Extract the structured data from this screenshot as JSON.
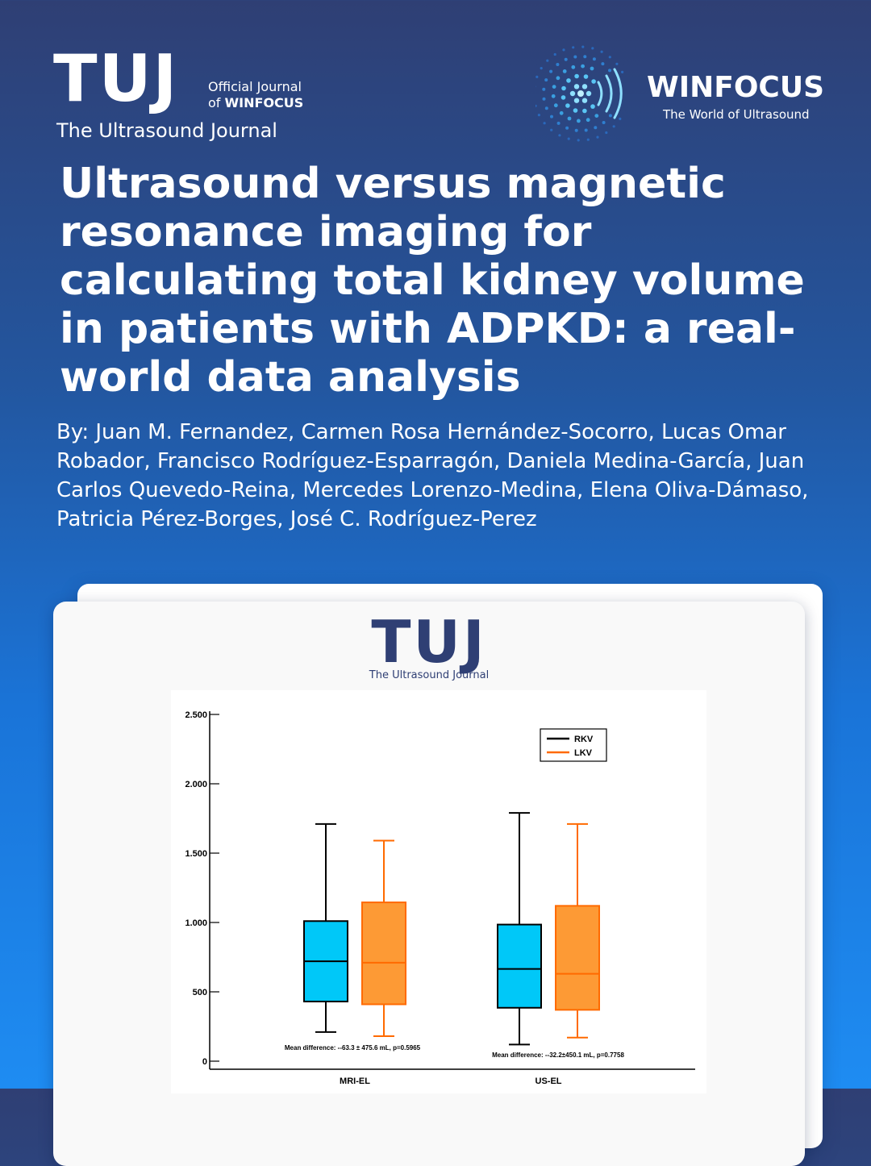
{
  "header": {
    "logo_text": "TUJ",
    "official_line1": "Official Journal",
    "official_line2_prefix": "of",
    "official_line2_bold": "WINFOCUS",
    "journal_name": "The Ultrasound Journal",
    "partner_name": "WINFOCUS",
    "partner_tagline": "The World of Ultrasound"
  },
  "article": {
    "title": "Ultrasound versus magnetic resonance imaging for calculating total kidney volume in patients with ADPKD: a real-world data analysis",
    "authors": "By: Juan M. Fernandez, Carmen Rosa Hernández-Socorro, Lucas Omar Robador, Francisco Rodríguez-Esparragón, Daniela Medina-García, Juan Carlos Quevedo-Reina, Mercedes Lorenzo-Medina, Elena Oliva-Dámaso, Patricia Pérez-Borges, José C. Rodríguez-Perez"
  },
  "card": {
    "logo_text": "TUJ",
    "subtitle": "The Ultrasound Journal"
  },
  "colors": {
    "rkv_fill": "#00c8f8",
    "lkv_fill": "#fd9a35",
    "lkv_line": "#ff6a00",
    "navy": "#2f3f74"
  },
  "chart_data": {
    "type": "box",
    "categories": [
      "MRI-EL",
      "US-EL"
    ],
    "ylim": [
      0,
      2500
    ],
    "yticks": [
      0,
      500,
      1000,
      1500,
      2000,
      2500
    ],
    "ytick_labels": [
      "0",
      "500",
      "1.000",
      "1.500",
      "2.000",
      "2.500"
    ],
    "legend": {
      "position": "top-right",
      "entries": [
        "RKV",
        "LKV"
      ]
    },
    "series": [
      {
        "name": "RKV",
        "color": "#000000",
        "fill": "#00c8f8",
        "boxes": [
          {
            "category": "MRI-EL",
            "min": 210,
            "q1": 430,
            "median": 720,
            "q3": 1010,
            "max": 1710
          },
          {
            "category": "US-EL",
            "min": 120,
            "q1": 385,
            "median": 665,
            "q3": 985,
            "max": 1790
          }
        ]
      },
      {
        "name": "LKV",
        "color": "#ff6a00",
        "fill": "#fd9a35",
        "boxes": [
          {
            "category": "MRI-EL",
            "min": 180,
            "q1": 410,
            "median": 710,
            "q3": 1145,
            "max": 1590
          },
          {
            "category": "US-EL",
            "min": 170,
            "q1": 370,
            "median": 630,
            "q3": 1120,
            "max": 1710
          }
        ]
      }
    ],
    "annotations": [
      {
        "category": "MRI-EL",
        "text": "Mean difference: --63.3 ± 475.6 mL, p=0.5965"
      },
      {
        "category": "US-EL",
        "text": "Mean difference: --32.2±450.1  mL, p=0.7758"
      }
    ]
  }
}
